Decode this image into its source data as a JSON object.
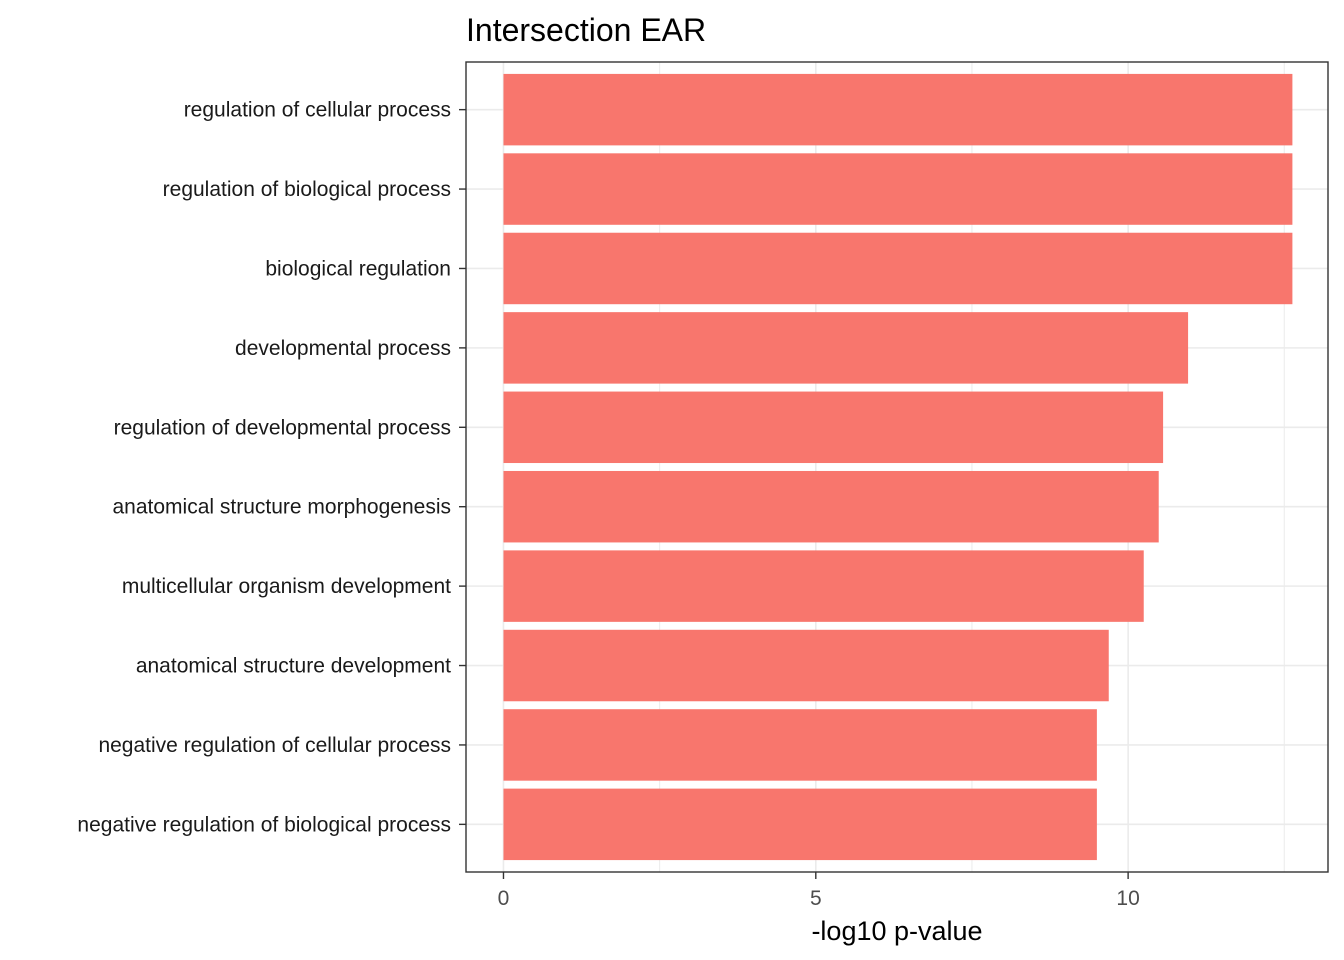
{
  "chart_data": {
    "type": "bar",
    "orientation": "horizontal",
    "title": "Intersection EAR",
    "xlabel": "-log10 p-value",
    "ylabel": "",
    "categories": [
      "regulation of cellular process",
      "regulation of biological process",
      "biological regulation",
      "developmental process",
      "regulation of developmental process",
      "anatomical structure morphogenesis",
      "multicellular organism development",
      "anatomical structure development",
      "negative regulation of cellular process",
      "negative regulation of biological process"
    ],
    "values": [
      12.63,
      12.63,
      12.63,
      10.96,
      10.56,
      10.49,
      10.25,
      9.69,
      9.5,
      9.5
    ],
    "xlim": [
      -0.6,
      13.2
    ],
    "x_ticks": [
      0,
      5,
      10
    ],
    "x_tick_labels": [
      "0",
      "5",
      "10"
    ],
    "grid": true,
    "legend": "none",
    "bar_color": "#F8766D",
    "grid_color": "#EBEBEB",
    "panel_border_color": "#333333",
    "background": "#FFFFFF"
  }
}
